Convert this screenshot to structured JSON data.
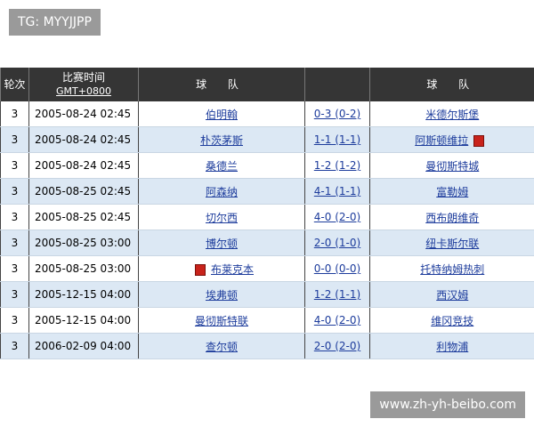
{
  "watermark": "TG: MYYJJPP",
  "footer_watermark": "www.zh-yh-beibo.com",
  "table": {
    "header": [
      "轮次",
      "比赛时间",
      "GMT+0800",
      "球 队",
      "球 队"
    ],
    "rows": [
      [
        "3",
        "2005-08-24 02:45",
        "伯明翰",
        "0-3 (0-2)",
        "米德尔斯堡"
      ],
      [
        "3",
        "2005-08-24 02:45",
        "朴茨茅斯",
        "1-1 (1-1)",
        "阿斯顿维拉"
      ],
      [
        "3",
        "2005-08-24 02:45",
        "桑德兰",
        "1-2 (1-2)",
        "曼彻斯特城"
      ],
      [
        "3",
        "2005-08-25 02:45",
        "阿森纳",
        "4-1 (1-1)",
        "富勒姆"
      ],
      [
        "3",
        "2005-08-25 02:45",
        "切尔西",
        "4-0 (2-0)",
        "西布朗维奇"
      ],
      [
        "3",
        "2005-08-25 03:00",
        "博尔顿",
        "2-0 (1-0)",
        "纽卡斯尔联"
      ],
      [
        "3",
        "2005-08-25 03:00",
        "布莱克本",
        "0-0 (0-0)",
        "托特纳姆热刺"
      ],
      [
        "3",
        "2005-12-15 04:00",
        "埃弗顿",
        "1-2 (1-1)",
        "西汉姆"
      ],
      [
        "3",
        "2005-12-15 04:00",
        "曼彻斯特联",
        "4-0 (2-0)",
        "维冈竞技"
      ],
      [
        "3",
        "2006-02-09 04:00",
        "查尔顿",
        "2-0 (2-0)",
        "利物浦"
      ]
    ]
  }
}
